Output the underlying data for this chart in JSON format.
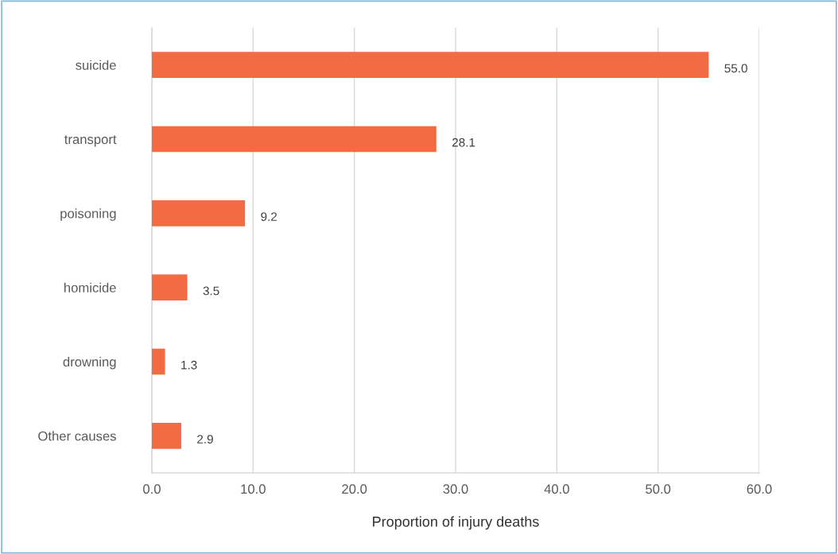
{
  "chart_data": {
    "type": "bar",
    "orientation": "horizontal",
    "xlabel": "Proportion of injury deaths",
    "categories": [
      "suicide",
      "transport",
      "poisoning",
      "homicide",
      "drowning",
      "Other causes"
    ],
    "values": [
      55.0,
      28.1,
      9.2,
      3.5,
      1.3,
      2.9
    ],
    "value_labels": [
      "55.0",
      "28.1",
      "9.2",
      "3.5",
      "1.3",
      "2.9"
    ],
    "color": "#f26b43",
    "xlim": [
      0,
      60
    ],
    "xticks": [
      {
        "value": 0,
        "label": "0.0"
      },
      {
        "value": 10,
        "label": "10.0"
      },
      {
        "value": 20,
        "label": "20.0"
      },
      {
        "value": 30,
        "label": "30.0"
      },
      {
        "value": 40,
        "label": "40.0"
      },
      {
        "value": 50,
        "label": "50.0"
      },
      {
        "value": 60,
        "label": "60.0"
      }
    ],
    "grid": "x",
    "legend": false
  }
}
